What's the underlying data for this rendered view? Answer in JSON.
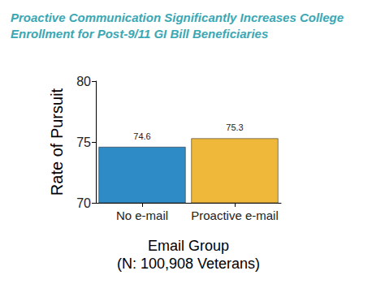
{
  "chart_data": {
    "type": "bar",
    "title": "Proactive Communication Significantly Increases College Enrollment for Post-9/11 GI Bill Beneficiaries",
    "xlabel": "Email Group",
    "ylabel": "Rate of Pursuit",
    "annotations": [
      "(N: 100,908 Veterans)"
    ],
    "categories": [
      "No e-mail",
      "Proactive e-mail"
    ],
    "values": [
      74.6,
      75.3
    ],
    "colors": [
      "#2e8bc6",
      "#f0b83a"
    ],
    "ylim": [
      70,
      80
    ],
    "yticks": [
      70,
      75,
      80
    ],
    "grid": false,
    "data_labels": true
  }
}
